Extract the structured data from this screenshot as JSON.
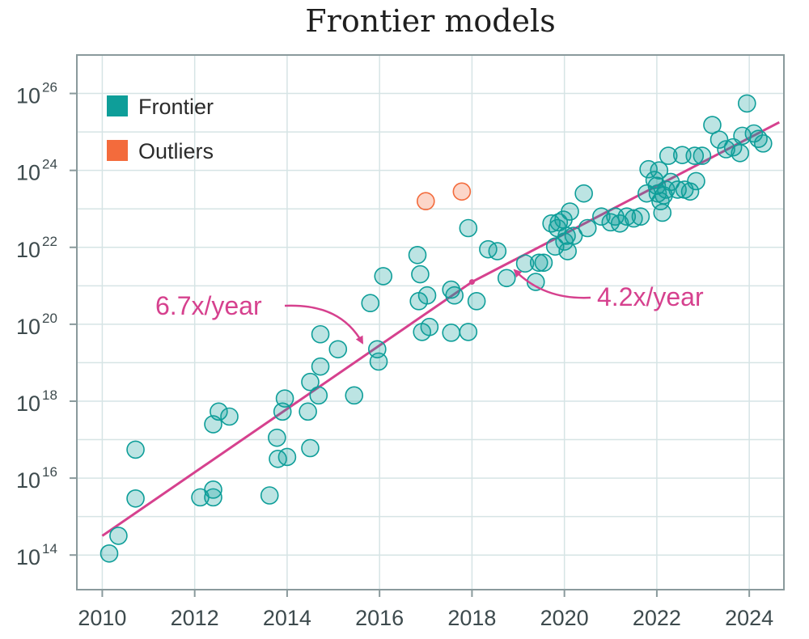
{
  "chart_data": {
    "type": "scatter",
    "title": "Frontier models",
    "xlabel": "",
    "ylabel": "",
    "xlim": [
      2009.45,
      2024.75
    ],
    "ylim": [
      13.1,
      27.0
    ],
    "y_scale": "log10",
    "x_ticks": [
      "2010",
      "2012",
      "2014",
      "2016",
      "2018",
      "2020",
      "2022",
      "2024"
    ],
    "y_ticks": [
      {
        "base": "10",
        "exp": "14"
      },
      {
        "base": "10",
        "exp": "16"
      },
      {
        "base": "10",
        "exp": "18"
      },
      {
        "base": "10",
        "exp": "20"
      },
      {
        "base": "10",
        "exp": "22"
      },
      {
        "base": "10",
        "exp": "24"
      },
      {
        "base": "10",
        "exp": "26"
      }
    ],
    "grid": true,
    "legend_position": "top-left",
    "series": [
      {
        "name": "Frontier",
        "color": "#0e9e99",
        "points": [
          [
            2010.15,
            14.04
          ],
          [
            2010.35,
            14.5
          ],
          [
            2010.72,
            16.74
          ],
          [
            2010.72,
            15.47
          ],
          [
            2012.12,
            15.5
          ],
          [
            2012.4,
            15.5
          ],
          [
            2012.4,
            15.7
          ],
          [
            2012.4,
            17.4
          ],
          [
            2012.52,
            17.73
          ],
          [
            2012.75,
            17.6
          ],
          [
            2013.62,
            15.55
          ],
          [
            2013.78,
            17.05
          ],
          [
            2013.8,
            16.5
          ],
          [
            2013.9,
            17.73
          ],
          [
            2013.95,
            18.07
          ],
          [
            2014.0,
            16.55
          ],
          [
            2014.45,
            17.73
          ],
          [
            2014.5,
            18.5
          ],
          [
            2014.5,
            16.78
          ],
          [
            2014.68,
            18.15
          ],
          [
            2014.72,
            18.9
          ],
          [
            2014.72,
            19.74
          ],
          [
            2015.1,
            19.35
          ],
          [
            2015.45,
            18.15
          ],
          [
            2015.8,
            20.55
          ],
          [
            2015.95,
            19.35
          ],
          [
            2015.98,
            19.03
          ],
          [
            2016.08,
            21.25
          ],
          [
            2016.82,
            21.8
          ],
          [
            2016.85,
            20.6
          ],
          [
            2016.88,
            21.3
          ],
          [
            2016.92,
            19.8
          ],
          [
            2017.03,
            20.75
          ],
          [
            2017.08,
            19.93
          ],
          [
            2017.55,
            20.9
          ],
          [
            2017.55,
            19.78
          ],
          [
            2017.62,
            20.75
          ],
          [
            2017.92,
            19.8
          ],
          [
            2017.92,
            22.5
          ],
          [
            2018.1,
            20.6
          ],
          [
            2018.35,
            21.95
          ],
          [
            2018.55,
            21.9
          ],
          [
            2018.75,
            21.2
          ],
          [
            2019.15,
            21.58
          ],
          [
            2019.38,
            21.1
          ],
          [
            2019.45,
            21.6
          ],
          [
            2019.55,
            21.6
          ],
          [
            2019.72,
            22.62
          ],
          [
            2019.8,
            22.02
          ],
          [
            2019.85,
            22.5
          ],
          [
            2019.88,
            22.65
          ],
          [
            2019.98,
            22.72
          ],
          [
            2020.0,
            22.15
          ],
          [
            2020.05,
            22.3
          ],
          [
            2020.07,
            21.9
          ],
          [
            2020.12,
            22.93
          ],
          [
            2020.2,
            22.3
          ],
          [
            2020.42,
            23.4
          ],
          [
            2020.5,
            22.5
          ],
          [
            2020.8,
            22.8
          ],
          [
            2021.0,
            22.65
          ],
          [
            2021.1,
            22.8
          ],
          [
            2021.2,
            22.62
          ],
          [
            2021.35,
            22.8
          ],
          [
            2021.5,
            22.75
          ],
          [
            2021.65,
            22.8
          ],
          [
            2021.78,
            23.4
          ],
          [
            2021.82,
            24.03
          ],
          [
            2021.95,
            23.75
          ],
          [
            2022.0,
            23.6
          ],
          [
            2022.02,
            23.4
          ],
          [
            2022.05,
            24.0
          ],
          [
            2022.08,
            23.2
          ],
          [
            2022.12,
            22.9
          ],
          [
            2022.15,
            23.35
          ],
          [
            2022.2,
            23.5
          ],
          [
            2022.25,
            24.38
          ],
          [
            2022.3,
            23.7
          ],
          [
            2022.45,
            23.5
          ],
          [
            2022.55,
            24.4
          ],
          [
            2022.6,
            23.5
          ],
          [
            2022.72,
            23.45
          ],
          [
            2022.82,
            24.38
          ],
          [
            2022.85,
            23.72
          ],
          [
            2022.98,
            24.38
          ],
          [
            2023.2,
            25.18
          ],
          [
            2023.35,
            24.8
          ],
          [
            2023.5,
            24.55
          ],
          [
            2023.65,
            24.6
          ],
          [
            2023.8,
            24.45
          ],
          [
            2023.85,
            24.9
          ],
          [
            2023.95,
            25.74
          ],
          [
            2024.1,
            24.96
          ],
          [
            2024.2,
            24.82
          ],
          [
            2024.3,
            24.7
          ]
        ]
      },
      {
        "name": "Outliers",
        "color": "#f36b3c",
        "points": [
          [
            2017.0,
            23.2
          ],
          [
            2017.78,
            23.45
          ]
        ]
      }
    ],
    "trend_lines": [
      {
        "label": "6.7x/year",
        "x": [
          2010.0,
          2018.0
        ],
        "y": [
          14.5,
          21.1
        ]
      },
      {
        "label": "4.2x/year",
        "x": [
          2018.0,
          2024.65
        ],
        "y": [
          21.1,
          25.25
        ]
      }
    ],
    "trend_color": "#d6418e"
  }
}
